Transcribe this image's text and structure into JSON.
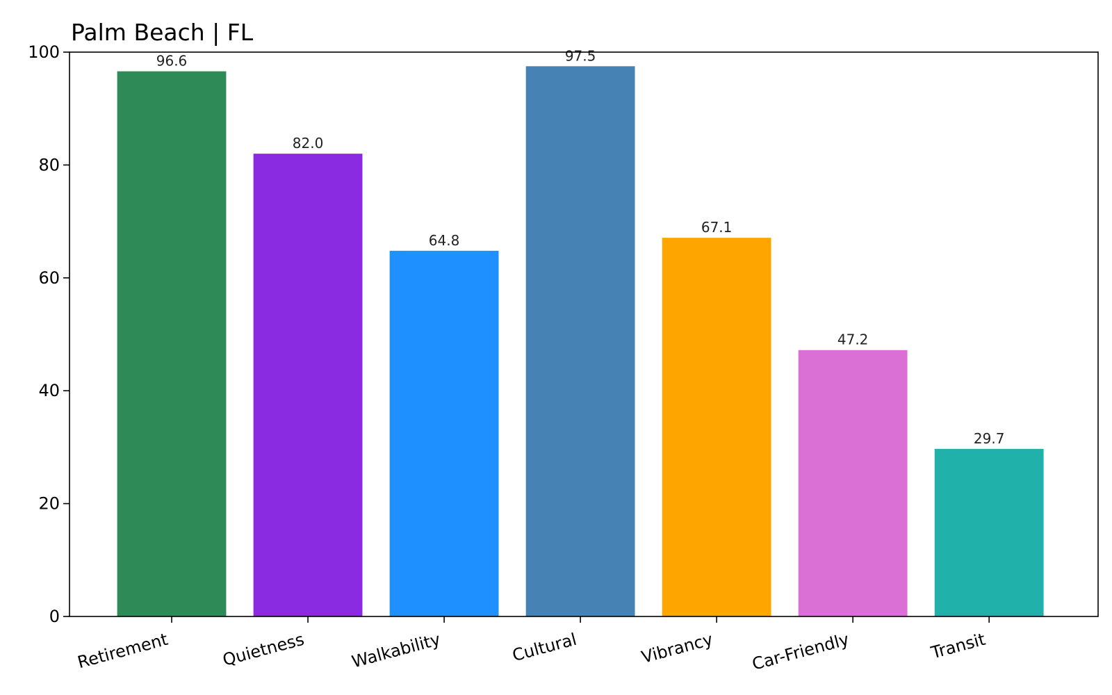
{
  "chart_data": {
    "type": "bar",
    "title": "Palm Beach | FL",
    "xlabel": "",
    "ylabel": "",
    "ylim": [
      0,
      100
    ],
    "yticks": [
      0,
      20,
      40,
      60,
      80,
      100
    ],
    "grid": false,
    "categories": [
      "Retirement",
      "Quietness",
      "Walkability",
      "Cultural",
      "Vibrancy",
      "Car-Friendly",
      "Transit"
    ],
    "values": [
      96.6,
      82.0,
      64.8,
      97.5,
      67.1,
      47.2,
      29.7
    ],
    "value_labels": [
      "96.6",
      "82.0",
      "64.8",
      "97.5",
      "67.1",
      "47.2",
      "29.7"
    ],
    "colors": [
      "#2e8b57",
      "#8a2be2",
      "#1e90ff",
      "#4682b4",
      "#ffa500",
      "#da70d6",
      "#20b2aa"
    ]
  }
}
